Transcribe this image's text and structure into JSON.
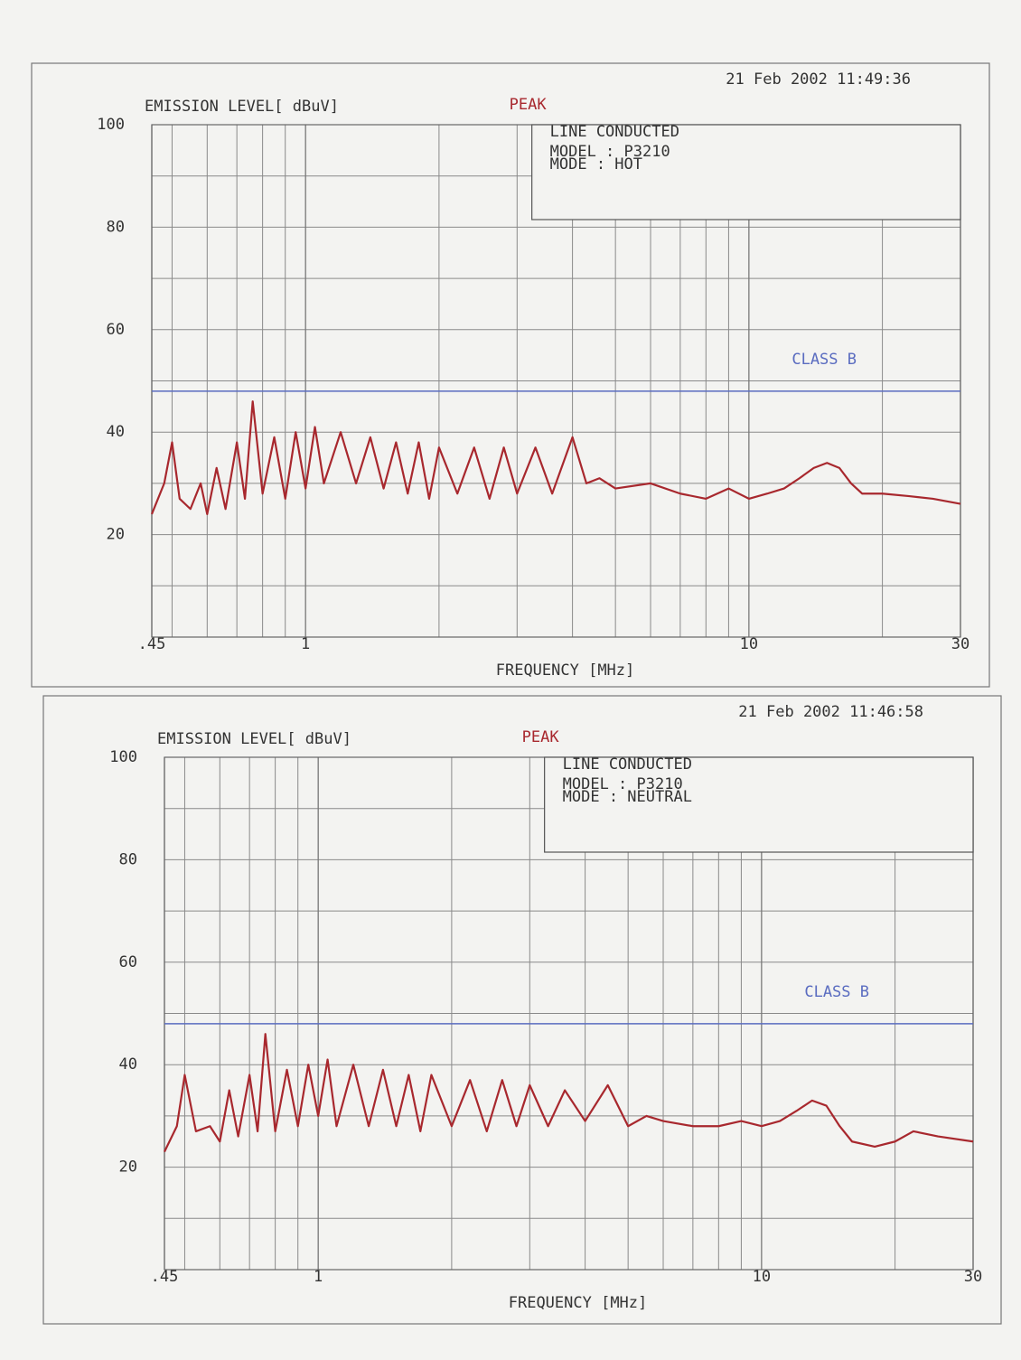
{
  "chart_data": [
    {
      "type": "line",
      "timestamp": "21 Feb 2002  11:49:36",
      "ylabel": "EMISSION LEVEL[ dBuV]",
      "xlabel": "FREQUENCY [MHz]",
      "annotations": [
        "LINE CONDUCTED",
        "MODEL : P3210",
        "MODE : HOT"
      ],
      "xscale": "log",
      "grid": true,
      "xlim": [
        0.45,
        30
      ],
      "xticks": [
        {
          "value": 0.45,
          "label": ".45"
        },
        1,
        10,
        30
      ],
      "ylim": [
        0,
        100
      ],
      "yticks": [
        20,
        40,
        60,
        80,
        100
      ],
      "series": [
        {
          "name": "PEAK",
          "color": "#a8282e",
          "x": [
            0.45,
            0.48,
            0.5,
            0.52,
            0.55,
            0.58,
            0.6,
            0.63,
            0.66,
            0.7,
            0.73,
            0.76,
            0.8,
            0.85,
            0.9,
            0.95,
            1.0,
            1.05,
            1.1,
            1.2,
            1.3,
            1.4,
            1.5,
            1.6,
            1.7,
            1.8,
            1.9,
            2.0,
            2.2,
            2.4,
            2.6,
            2.8,
            3.0,
            3.3,
            3.6,
            4.0,
            4.3,
            4.6,
            5,
            6,
            7,
            8,
            9,
            10,
            11,
            12,
            13,
            14,
            15,
            16,
            17,
            18,
            20,
            23,
            26,
            30
          ],
          "values": [
            24,
            30,
            38,
            27,
            25,
            30,
            24,
            33,
            25,
            38,
            27,
            46,
            28,
            39,
            27,
            40,
            29,
            41,
            30,
            40,
            30,
            39,
            29,
            38,
            28,
            38,
            27,
            37,
            28,
            37,
            27,
            37,
            28,
            37,
            28,
            39,
            30,
            31,
            29,
            30,
            28,
            27,
            29,
            27,
            28,
            29,
            31,
            33,
            34,
            33,
            30,
            28,
            28,
            27.5,
            27,
            26
          ]
        },
        {
          "name": "CLASS B",
          "color": "#5a6cc0",
          "x": [
            0.45,
            30
          ],
          "values": [
            48,
            48
          ]
        }
      ]
    },
    {
      "type": "line",
      "timestamp": "21 Feb 2002  11:46:58",
      "ylabel": "EMISSION LEVEL[ dBuV]",
      "xlabel": "FREQUENCY [MHz]",
      "annotations": [
        "LINE CONDUCTED",
        "MODEL : P3210",
        "MODE : NEUTRAL"
      ],
      "xscale": "log",
      "grid": true,
      "xlim": [
        0.45,
        30
      ],
      "xticks": [
        {
          "value": 0.45,
          "label": ".45"
        },
        1,
        10,
        30
      ],
      "ylim": [
        0,
        100
      ],
      "yticks": [
        20,
        40,
        60,
        80,
        100
      ],
      "series": [
        {
          "name": "PEAK",
          "color": "#a8282e",
          "x": [
            0.45,
            0.48,
            0.5,
            0.53,
            0.57,
            0.6,
            0.63,
            0.66,
            0.7,
            0.73,
            0.76,
            0.8,
            0.85,
            0.9,
            0.95,
            1.0,
            1.05,
            1.1,
            1.2,
            1.3,
            1.4,
            1.5,
            1.6,
            1.7,
            1.8,
            2.0,
            2.2,
            2.4,
            2.6,
            2.8,
            3.0,
            3.3,
            3.6,
            4.0,
            4.5,
            5.0,
            5.5,
            6,
            7,
            8,
            9,
            10,
            11,
            12,
            13,
            14,
            15,
            16,
            18,
            20,
            22,
            25,
            30
          ],
          "values": [
            23,
            28,
            38,
            27,
            28,
            25,
            35,
            26,
            38,
            27,
            46,
            27,
            39,
            28,
            40,
            30,
            41,
            28,
            40,
            28,
            39,
            28,
            38,
            27,
            38,
            28,
            37,
            27,
            37,
            28,
            36,
            28,
            35,
            29,
            36,
            28,
            30,
            29,
            28,
            28,
            29,
            28,
            29,
            31,
            33,
            32,
            28,
            25,
            24,
            25,
            27,
            26,
            25
          ]
        },
        {
          "name": "CLASS B",
          "color": "#5a6cc0",
          "x": [
            0.45,
            30
          ],
          "values": [
            48,
            48
          ]
        }
      ]
    }
  ]
}
